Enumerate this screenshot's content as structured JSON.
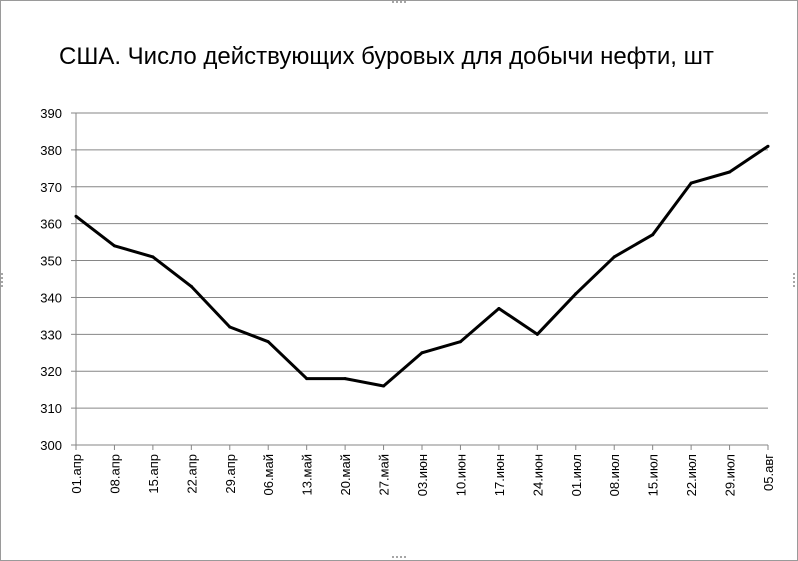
{
  "chart_data": {
    "type": "line",
    "title": "США. Число действующих буровых для добычи нефти, шт",
    "xlabel": "",
    "ylabel": "",
    "categories": [
      "01.апр",
      "08.апр",
      "15.апр",
      "22.апр",
      "29.апр",
      "06.май",
      "13.май",
      "20.май",
      "27.май",
      "03.июн",
      "10.июн",
      "17.июн",
      "24.июн",
      "01.июл",
      "08.июл",
      "15.июл",
      "22.июл",
      "29.июл",
      "05.авг"
    ],
    "series": [
      {
        "values": [
          362,
          354,
          351,
          343,
          332,
          328,
          318,
          318,
          316,
          325,
          328,
          337,
          330,
          341,
          351,
          357,
          371,
          374,
          381
        ]
      }
    ],
    "ylim": [
      300,
      390
    ],
    "yticks": [
      300,
      310,
      320,
      330,
      340,
      350,
      360,
      370,
      380,
      390
    ],
    "grid": true,
    "legend": "none",
    "line_color": "#000000",
    "grid_color": "#868686"
  }
}
